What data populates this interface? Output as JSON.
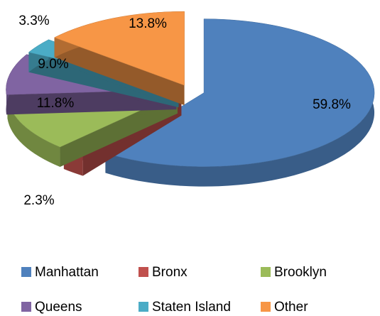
{
  "chart_data": {
    "type": "pie",
    "categories": [
      "Manhattan",
      "Bronx",
      "Brooklyn",
      "Queens",
      "Staten Island",
      "Other"
    ],
    "values": [
      59.8,
      2.3,
      11.8,
      9.0,
      3.3,
      13.8
    ],
    "value_labels": [
      "59.8%",
      "2.3%",
      "11.8%",
      "9.0%",
      "3.3%",
      "13.8%"
    ],
    "colors": [
      "#4f81bd",
      "#c0504d",
      "#9bbb59",
      "#8064a2",
      "#4bacc6",
      "#f79646"
    ],
    "legend": "bottom"
  }
}
